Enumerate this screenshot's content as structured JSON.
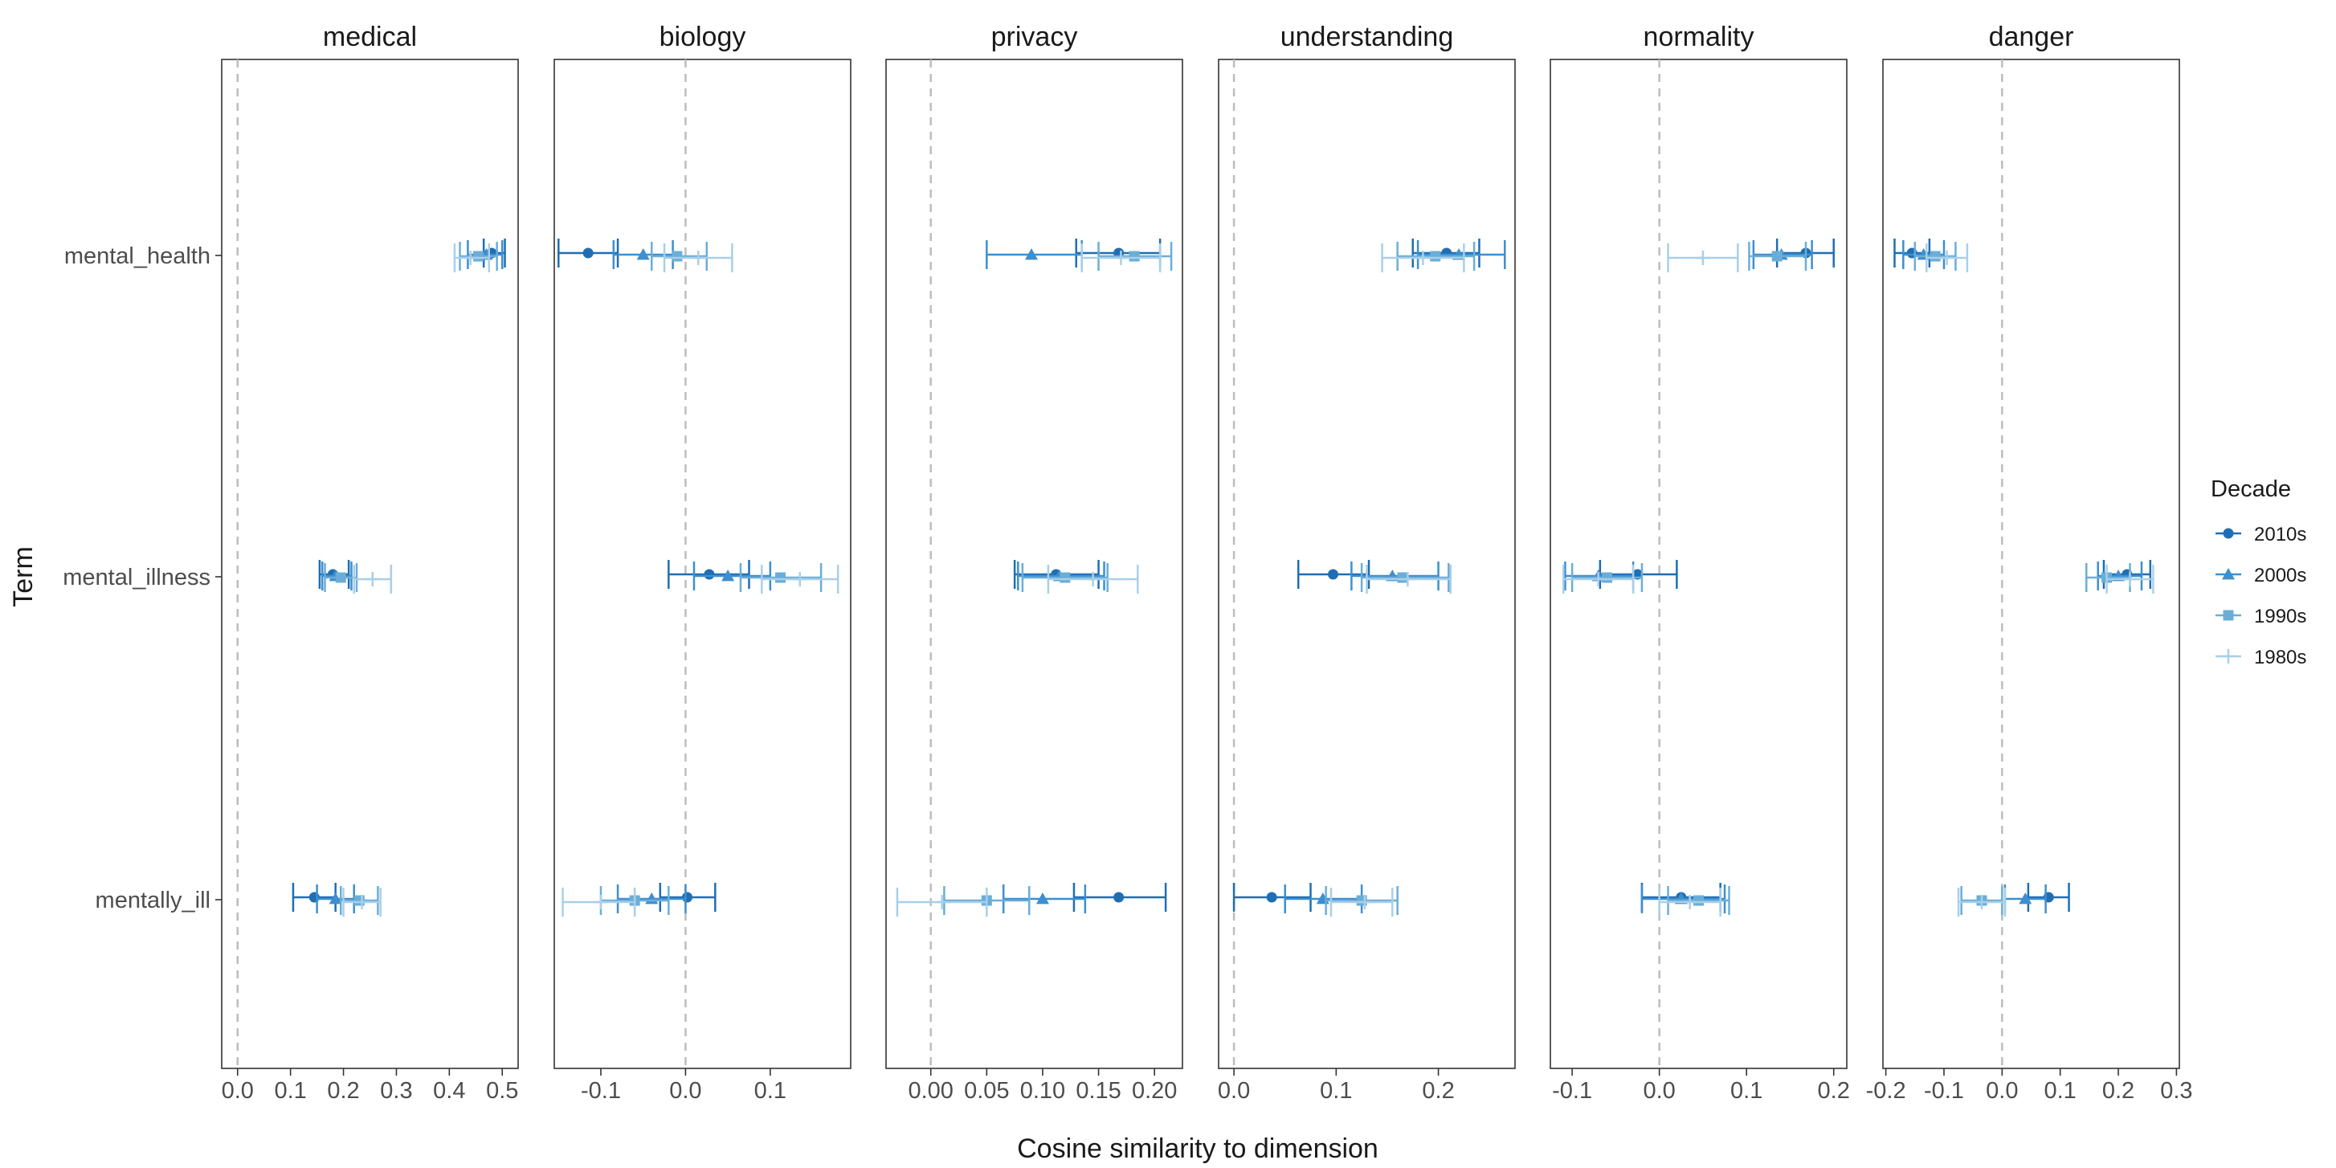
{
  "chart_data": {
    "type": "scatter",
    "subtype": "faceted dot plot with error bars",
    "xlabel": "Cosine similarity to dimension",
    "ylabel": "Term",
    "terms": [
      "mental_health",
      "mental_illness",
      "mentally_ill"
    ],
    "reference_line": 0,
    "legend": {
      "title": "Decade",
      "position": "right",
      "entries": [
        {
          "name": "2010s",
          "color": "#1f6eb4",
          "shape": "circle"
        },
        {
          "name": "2000s",
          "color": "#3d8fcf",
          "shape": "triangle"
        },
        {
          "name": "1990s",
          "color": "#6aaed8",
          "shape": "square"
        },
        {
          "name": "1980s",
          "color": "#a9cfe9",
          "shape": "plus"
        }
      ]
    },
    "facets": [
      {
        "title": "medical",
        "xlim": [
          -0.03,
          0.53
        ],
        "ticks": [
          0.0,
          0.1,
          0.2,
          0.3,
          0.4,
          0.5
        ],
        "tick_labels": [
          "0.0",
          "0.1",
          "0.2",
          "0.3",
          "0.4",
          "0.5"
        ],
        "data": {
          "mental_health": [
            {
              "decade": "2010s",
              "value": 0.48,
              "lo": 0.465,
              "hi": 0.505
            },
            {
              "decade": "2000s",
              "value": 0.47,
              "lo": 0.435,
              "hi": 0.5
            },
            {
              "decade": "1990s",
              "value": 0.455,
              "lo": 0.42,
              "hi": 0.49
            },
            {
              "decade": "1980s",
              "value": 0.44,
              "lo": 0.41,
              "hi": 0.475
            }
          ],
          "mental_illness": [
            {
              "decade": "2010s",
              "value": 0.18,
              "lo": 0.155,
              "hi": 0.21
            },
            {
              "decade": "2000s",
              "value": 0.185,
              "lo": 0.16,
              "hi": 0.215
            },
            {
              "decade": "1990s",
              "value": 0.195,
              "lo": 0.165,
              "hi": 0.225
            },
            {
              "decade": "1980s",
              "value": 0.255,
              "lo": 0.22,
              "hi": 0.29
            }
          ],
          "mentally_ill": [
            {
              "decade": "2010s",
              "value": 0.145,
              "lo": 0.105,
              "hi": 0.185
            },
            {
              "decade": "2000s",
              "value": 0.185,
              "lo": 0.15,
              "hi": 0.22
            },
            {
              "decade": "1990s",
              "value": 0.23,
              "lo": 0.195,
              "hi": 0.265
            },
            {
              "decade": "1980s",
              "value": 0.235,
              "lo": 0.2,
              "hi": 0.27
            }
          ]
        }
      },
      {
        "title": "biology",
        "xlim": [
          -0.155,
          0.195
        ],
        "ticks": [
          -0.1,
          0.0,
          0.1
        ],
        "tick_labels": [
          "-0.1",
          "0.0",
          "0.1"
        ],
        "data": {
          "mental_health": [
            {
              "decade": "2010s",
              "value": -0.115,
              "lo": -0.15,
              "hi": -0.08
            },
            {
              "decade": "2000s",
              "value": -0.05,
              "lo": -0.085,
              "hi": -0.015
            },
            {
              "decade": "1990s",
              "value": -0.01,
              "lo": -0.04,
              "hi": 0.025
            },
            {
              "decade": "1980s",
              "value": 0.015,
              "lo": -0.025,
              "hi": 0.055
            }
          ],
          "mental_illness": [
            {
              "decade": "2010s",
              "value": 0.028,
              "lo": -0.02,
              "hi": 0.075
            },
            {
              "decade": "2000s",
              "value": 0.05,
              "lo": 0.01,
              "hi": 0.1
            },
            {
              "decade": "1990s",
              "value": 0.112,
              "lo": 0.065,
              "hi": 0.16
            },
            {
              "decade": "1980s",
              "value": 0.135,
              "lo": 0.09,
              "hi": 0.18
            }
          ],
          "mentally_ill": [
            {
              "decade": "2010s",
              "value": 0.002,
              "lo": -0.03,
              "hi": 0.035
            },
            {
              "decade": "2000s",
              "value": -0.04,
              "lo": -0.08,
              "hi": 0.0
            },
            {
              "decade": "1990s",
              "value": -0.06,
              "lo": -0.1,
              "hi": -0.02
            },
            {
              "decade": "1980s",
              "value": -0.1,
              "lo": -0.145,
              "hi": -0.06
            }
          ]
        }
      },
      {
        "title": "privacy",
        "xlim": [
          -0.04,
          0.225
        ],
        "ticks": [
          0.0,
          0.05,
          0.1,
          0.15,
          0.2
        ],
        "tick_labels": [
          "0.00",
          "0.05",
          "0.10",
          "0.15",
          "0.20"
        ],
        "data": {
          "mental_health": [
            {
              "decade": "2010s",
              "value": 0.168,
              "lo": 0.13,
              "hi": 0.205
            },
            {
              "decade": "2000s",
              "value": 0.09,
              "lo": 0.05,
              "hi": 0.135
            },
            {
              "decade": "1990s",
              "value": 0.182,
              "lo": 0.15,
              "hi": 0.215
            },
            {
              "decade": "1980s",
              "value": 0.17,
              "lo": 0.135,
              "hi": 0.205
            }
          ],
          "mental_illness": [
            {
              "decade": "2010s",
              "value": 0.112,
              "lo": 0.075,
              "hi": 0.15
            },
            {
              "decade": "2000s",
              "value": 0.115,
              "lo": 0.078,
              "hi": 0.155
            },
            {
              "decade": "1990s",
              "value": 0.12,
              "lo": 0.082,
              "hi": 0.158
            },
            {
              "decade": "1980s",
              "value": 0.145,
              "lo": 0.105,
              "hi": 0.185
            }
          ],
          "mentally_ill": [
            {
              "decade": "2010s",
              "value": 0.168,
              "lo": 0.128,
              "hi": 0.21
            },
            {
              "decade": "2000s",
              "value": 0.1,
              "lo": 0.065,
              "hi": 0.138
            },
            {
              "decade": "1990s",
              "value": 0.05,
              "lo": 0.012,
              "hi": 0.088
            },
            {
              "decade": "1980s",
              "value": 0.01,
              "lo": -0.03,
              "hi": 0.05
            }
          ]
        }
      },
      {
        "title": "understanding",
        "xlim": [
          -0.015,
          0.275
        ],
        "ticks": [
          0.0,
          0.1,
          0.2
        ],
        "tick_labels": [
          "0.0",
          "0.1",
          "0.2"
        ],
        "data": {
          "mental_health": [
            {
              "decade": "2010s",
              "value": 0.208,
              "lo": 0.175,
              "hi": 0.24
            },
            {
              "decade": "2000s",
              "value": 0.22,
              "lo": 0.18,
              "hi": 0.265
            },
            {
              "decade": "1990s",
              "value": 0.197,
              "lo": 0.16,
              "hi": 0.235
            },
            {
              "decade": "1980s",
              "value": 0.185,
              "lo": 0.145,
              "hi": 0.225
            }
          ],
          "mental_illness": [
            {
              "decade": "2010s",
              "value": 0.097,
              "lo": 0.063,
              "hi": 0.132
            },
            {
              "decade": "2000s",
              "value": 0.155,
              "lo": 0.115,
              "hi": 0.2
            },
            {
              "decade": "1990s",
              "value": 0.165,
              "lo": 0.125,
              "hi": 0.21
            },
            {
              "decade": "1980s",
              "value": 0.17,
              "lo": 0.13,
              "hi": 0.212
            }
          ],
          "mentally_ill": [
            {
              "decade": "2010s",
              "value": 0.037,
              "lo": 0.0,
              "hi": 0.075
            },
            {
              "decade": "2000s",
              "value": 0.087,
              "lo": 0.05,
              "hi": 0.125
            },
            {
              "decade": "1990s",
              "value": 0.125,
              "lo": 0.09,
              "hi": 0.16
            },
            {
              "decade": "1980s",
              "value": 0.128,
              "lo": 0.095,
              "hi": 0.155
            }
          ]
        }
      },
      {
        "title": "normality",
        "xlim": [
          -0.125,
          0.215
        ],
        "ticks": [
          -0.1,
          0.0,
          0.1,
          0.2
        ],
        "tick_labels": [
          "-0.1",
          "0.0",
          "0.1",
          "0.2"
        ],
        "data": {
          "mental_health": [
            {
              "decade": "2010s",
              "value": 0.168,
              "lo": 0.135,
              "hi": 0.2
            },
            {
              "decade": "2000s",
              "value": 0.14,
              "lo": 0.108,
              "hi": 0.175
            },
            {
              "decade": "1990s",
              "value": 0.135,
              "lo": 0.103,
              "hi": 0.168
            },
            {
              "decade": "1980s",
              "value": 0.05,
              "lo": 0.01,
              "hi": 0.09
            }
          ],
          "mental_illness": [
            {
              "decade": "2010s",
              "value": -0.025,
              "lo": -0.068,
              "hi": 0.02
            },
            {
              "decade": "2000s",
              "value": -0.07,
              "lo": -0.108,
              "hi": -0.03
            },
            {
              "decade": "1990s",
              "value": -0.06,
              "lo": -0.1,
              "hi": -0.02
            },
            {
              "decade": "1980s",
              "value": -0.07,
              "lo": -0.11,
              "hi": -0.03
            }
          ],
          "mentally_ill": [
            {
              "decade": "2010s",
              "value": 0.025,
              "lo": -0.02,
              "hi": 0.07
            },
            {
              "decade": "2000s",
              "value": 0.025,
              "lo": -0.02,
              "hi": 0.075
            },
            {
              "decade": "1990s",
              "value": 0.045,
              "lo": 0.01,
              "hi": 0.08
            },
            {
              "decade": "1980s",
              "value": 0.035,
              "lo": 0.0,
              "hi": 0.07
            }
          ]
        }
      },
      {
        "title": "danger",
        "xlim": [
          -0.205,
          0.305
        ],
        "ticks": [
          -0.2,
          -0.1,
          0.0,
          0.1,
          0.2,
          0.3
        ],
        "tick_labels": [
          "-0.2",
          "-0.1",
          "0.0",
          "0.1",
          "0.2",
          "0.3"
        ],
        "data": {
          "mental_health": [
            {
              "decade": "2010s",
              "value": -0.155,
              "lo": -0.185,
              "hi": -0.125
            },
            {
              "decade": "2000s",
              "value": -0.135,
              "lo": -0.17,
              "hi": -0.1
            },
            {
              "decade": "1990s",
              "value": -0.115,
              "lo": -0.15,
              "hi": -0.08
            },
            {
              "decade": "1980s",
              "value": -0.095,
              "lo": -0.13,
              "hi": -0.06
            }
          ],
          "mental_illness": [
            {
              "decade": "2010s",
              "value": 0.215,
              "lo": 0.175,
              "hi": 0.255
            },
            {
              "decade": "2000s",
              "value": 0.2,
              "lo": 0.165,
              "hi": 0.24
            },
            {
              "decade": "1990s",
              "value": 0.18,
              "lo": 0.145,
              "hi": 0.22
            },
            {
              "decade": "1980s",
              "value": 0.22,
              "lo": 0.18,
              "hi": 0.26
            }
          ],
          "mentally_ill": [
            {
              "decade": "2010s",
              "value": 0.08,
              "lo": 0.045,
              "hi": 0.115
            },
            {
              "decade": "2000s",
              "value": 0.04,
              "lo": 0.005,
              "hi": 0.075
            },
            {
              "decade": "1990s",
              "value": -0.035,
              "lo": -0.07,
              "hi": 0.0
            },
            {
              "decade": "1980s",
              "value": -0.035,
              "lo": -0.075,
              "hi": 0.005
            }
          ]
        }
      }
    ]
  }
}
